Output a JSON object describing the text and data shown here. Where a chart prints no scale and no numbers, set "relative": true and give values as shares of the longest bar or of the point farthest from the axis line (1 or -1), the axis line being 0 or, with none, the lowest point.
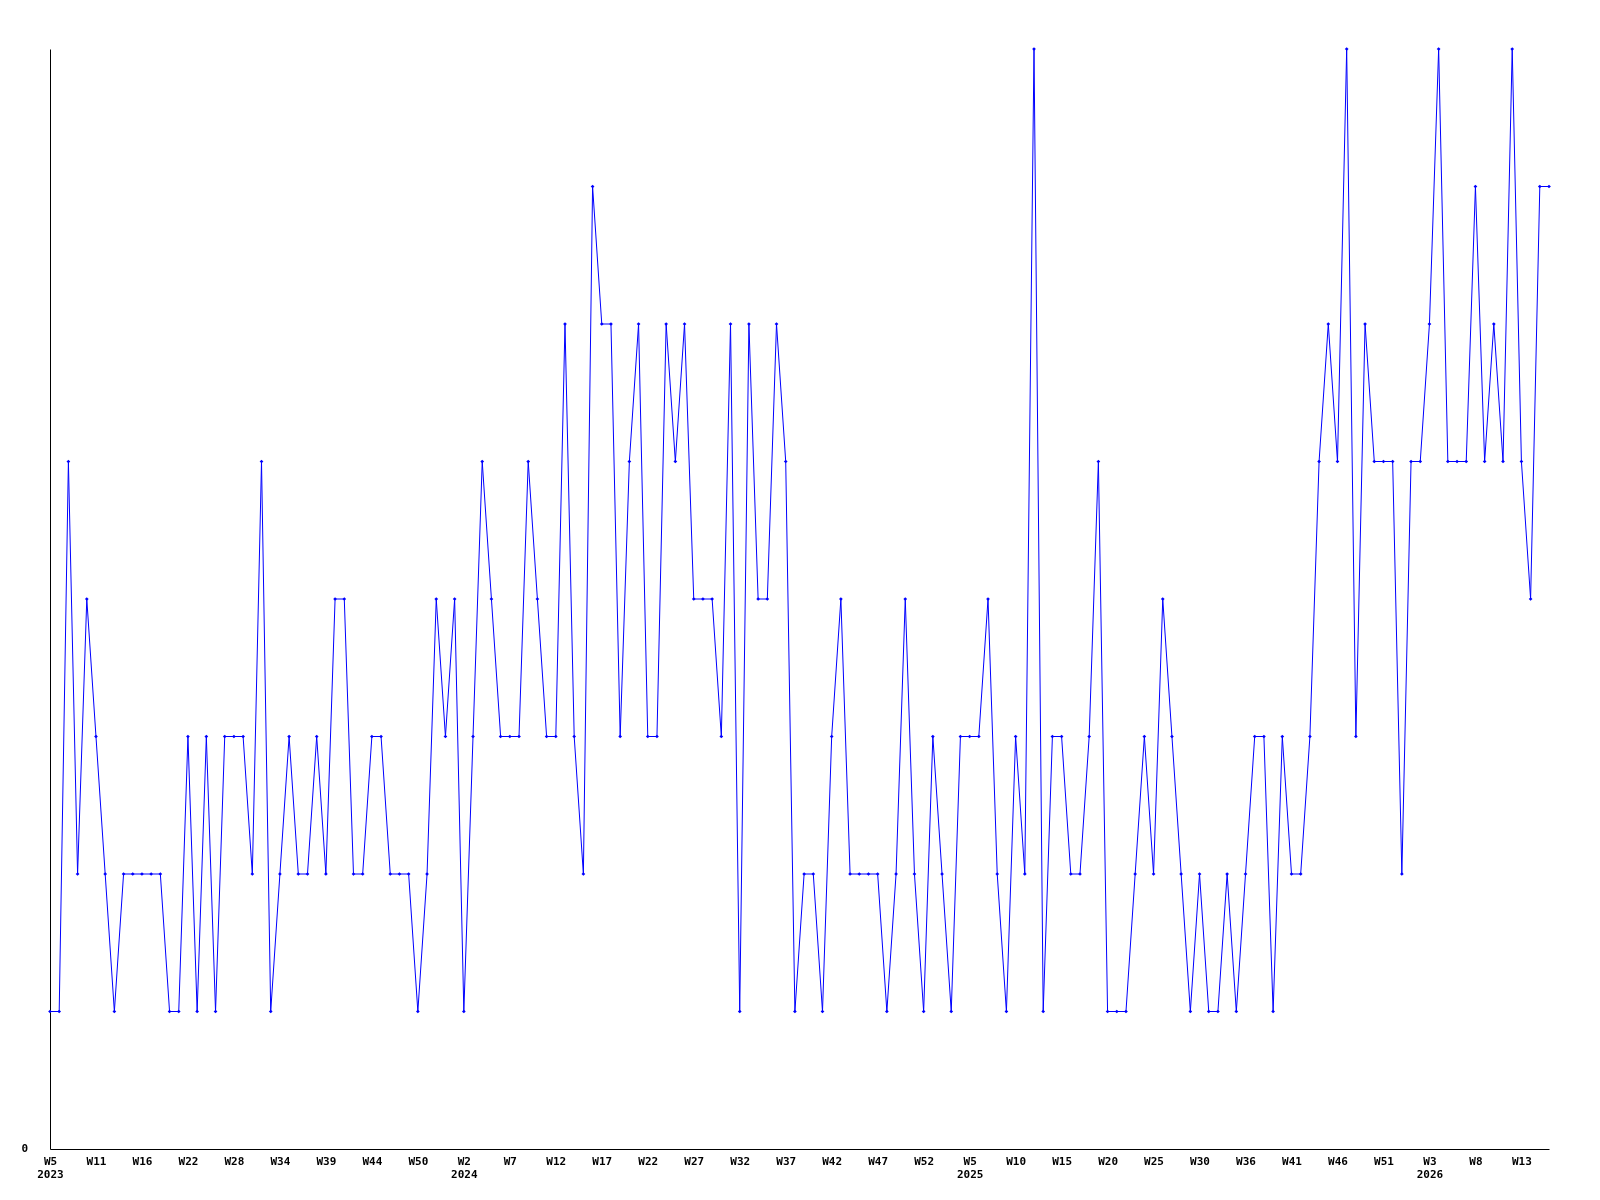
{
  "chart_data": {
    "type": "line",
    "relative": true,
    "marker": "diamond",
    "line_style": "solid",
    "annotations": [
      "0"
    ],
    "categories": [
      "W5 2023",
      null,
      null,
      null,
      null,
      "W11",
      null,
      null,
      null,
      null,
      "W16",
      null,
      null,
      null,
      null,
      "W22",
      null,
      null,
      null,
      null,
      "W28",
      null,
      null,
      null,
      null,
      "W34",
      null,
      null,
      null,
      null,
      "W39",
      null,
      null,
      null,
      null,
      "W44",
      null,
      null,
      null,
      null,
      "W50",
      null,
      null,
      null,
      null,
      "W2 2024",
      null,
      null,
      null,
      null,
      "W7",
      null,
      null,
      null,
      null,
      "W12",
      null,
      null,
      null,
      null,
      "W17",
      null,
      null,
      null,
      null,
      "W22",
      null,
      null,
      null,
      null,
      "W27",
      null,
      null,
      null,
      null,
      "W32",
      null,
      null,
      null,
      null,
      "W37",
      null,
      null,
      null,
      null,
      "W42",
      null,
      null,
      null,
      null,
      "W47",
      null,
      null,
      null,
      null,
      "W52",
      null,
      null,
      null,
      null,
      "W5 2025",
      null,
      null,
      null,
      null,
      "W10",
      null,
      null,
      null,
      null,
      "W15",
      null,
      null,
      null,
      null,
      "W20",
      null,
      null,
      null,
      null,
      "W25",
      null,
      null,
      null,
      null,
      "W30",
      null,
      null,
      null,
      null,
      "W36",
      null,
      null,
      null,
      null,
      "W41",
      null,
      null,
      null,
      null,
      "W46",
      null,
      null,
      null,
      null,
      "W51",
      null,
      null,
      null,
      null,
      "W3 2026",
      null,
      null,
      null,
      null,
      "W8",
      null,
      null,
      null,
      null,
      "W13",
      null,
      null,
      null
    ],
    "series": [
      {
        "color": "#0000ff",
        "values": [
          0.125,
          0.125,
          0.625,
          0.25,
          0.5,
          0.375,
          0.25,
          0.125,
          0.25,
          0.25,
          0.25,
          0.25,
          0.25,
          0.125,
          0.125,
          0.375,
          0.125,
          0.375,
          0.125,
          0.375,
          0.375,
          0.375,
          0.25,
          0.625,
          0.125,
          0.25,
          0.375,
          0.25,
          0.25,
          0.375,
          0.25,
          0.5,
          0.5,
          0.25,
          0.25,
          0.375,
          0.375,
          0.25,
          0.25,
          0.25,
          0.125,
          0.25,
          0.5,
          0.375,
          0.5,
          0.125,
          0.375,
          0.625,
          0.5,
          0.375,
          0.375,
          0.375,
          0.625,
          0.5,
          0.375,
          0.375,
          0.75,
          0.375,
          0.25,
          0.875,
          0.75,
          0.75,
          0.375,
          0.625,
          0.75,
          0.375,
          0.375,
          0.75,
          0.625,
          0.75,
          0.5,
          0.5,
          0.5,
          0.375,
          0.75,
          0.125,
          0.75,
          0.5,
          0.5,
          0.75,
          0.625,
          0.125,
          0.25,
          0.25,
          0.125,
          0.375,
          0.5,
          0.25,
          0.25,
          0.25,
          0.25,
          0.125,
          0.25,
          0.5,
          0.25,
          0.125,
          0.375,
          0.25,
          0.125,
          0.375,
          0.375,
          0.375,
          0.5,
          0.25,
          0.125,
          0.375,
          0.25,
          1,
          0.125,
          0.375,
          0.375,
          0.25,
          0.25,
          0.375,
          0.625,
          0.125,
          0.125,
          0.125,
          0.25,
          0.375,
          0.25,
          0.5,
          0.375,
          0.25,
          0.125,
          0.25,
          0.125,
          0.125,
          0.25,
          0.125,
          0.25,
          0.375,
          0.375,
          0.125,
          0.375,
          0.25,
          0.25,
          0.375,
          0.625,
          0.75,
          0.625,
          1,
          0.375,
          0.75,
          0.625,
          0.625,
          0.625,
          0.25,
          0.625,
          0.625,
          0.75,
          1,
          0.625,
          0.625,
          0.625,
          0.875,
          0.625,
          0.75,
          0.625,
          1,
          0.625,
          0.5,
          0.875,
          0.875
        ]
      }
    ]
  }
}
